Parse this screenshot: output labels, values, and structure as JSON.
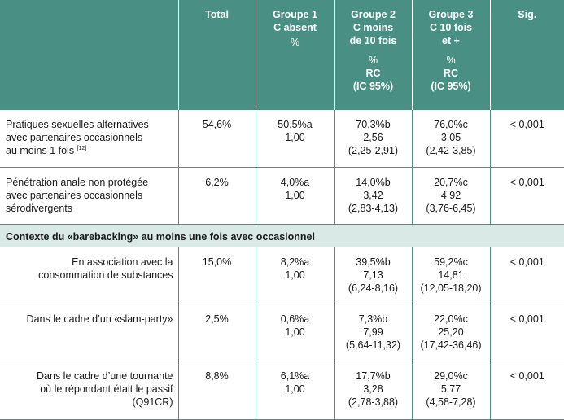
{
  "header": {
    "col0": "",
    "total": "Total",
    "g1": [
      "Groupe 1",
      "C absent",
      "%"
    ],
    "g2": [
      "Groupe 2",
      "C moins",
      "de 10 fois",
      "%",
      "RC",
      "(IC 95%)"
    ],
    "g3": [
      "Groupe 3",
      "C 10 fois",
      "et +",
      "%",
      "RC",
      "(IC 95%)"
    ],
    "sig": "Sig."
  },
  "rows": [
    {
      "label": [
        "Pratiques sexuelles alternatives",
        "avec partenaires occasionnels",
        "au moins 1 fois"
      ],
      "label_ref": "[12]",
      "total": "54,6%",
      "g1": [
        "50,5%a",
        "1,00"
      ],
      "g2": [
        "70,3%b",
        "2,56",
        "(2,25-2,91)"
      ],
      "g3": [
        "76,0%c",
        "3,05",
        "(2,42-3,85)"
      ],
      "sig": "< 0,001"
    },
    {
      "label": [
        "Pénétration anale non protégée",
        "avec partenaires occasionnels",
        "sérodivergents"
      ],
      "total": "6,2%",
      "g1": [
        "4,0%a",
        "1,00"
      ],
      "g2": [
        "14,0%b",
        "3,42",
        "(2,83-4,13)"
      ],
      "g3": [
        "20,7%c",
        "4,92",
        "(3,76-6,45)"
      ],
      "sig": "< 0,001"
    }
  ],
  "section": "Contexte du «barebacking» au moins une fois avec occasionnel",
  "section_rows": [
    {
      "label": [
        "En association avec la",
        "consommation de substances"
      ],
      "total": "15,0%",
      "g1": [
        "8,2%a",
        "1,00"
      ],
      "g2": [
        "39,5%b",
        "7,13",
        "(6,24-8,16)"
      ],
      "g3": [
        "59,2%c",
        "14,81",
        "(12,05-18,20)"
      ],
      "sig": "< 0,001"
    },
    {
      "label": [
        "Dans le cadre d’un «slam-party»"
      ],
      "total": "2,5%",
      "g1": [
        "0,6%a",
        "1,00"
      ],
      "g2": [
        "7,3%b",
        "7,99",
        "(5,64-11,32)"
      ],
      "g3": [
        "22,0%c",
        "25,20",
        "(17,42-36,46)"
      ],
      "sig": "< 0,001"
    },
    {
      "label": [
        "Dans le cadre d’une tournante",
        "où le répondant était le passif",
        "(Q91CR)"
      ],
      "total": "8,8%",
      "g1": [
        "6,1%a",
        "1,00"
      ],
      "g2": [
        "17,7%b",
        "3,28",
        "(2,78-3,88)"
      ],
      "g3": [
        "29,0%c",
        "5,77",
        "(4,58-7,28)"
      ],
      "sig": "< 0,001"
    }
  ],
  "colors": {
    "header_bg": "#4a8f84",
    "section_bg": "#d9e9e5",
    "rule": "#4a8f84"
  }
}
